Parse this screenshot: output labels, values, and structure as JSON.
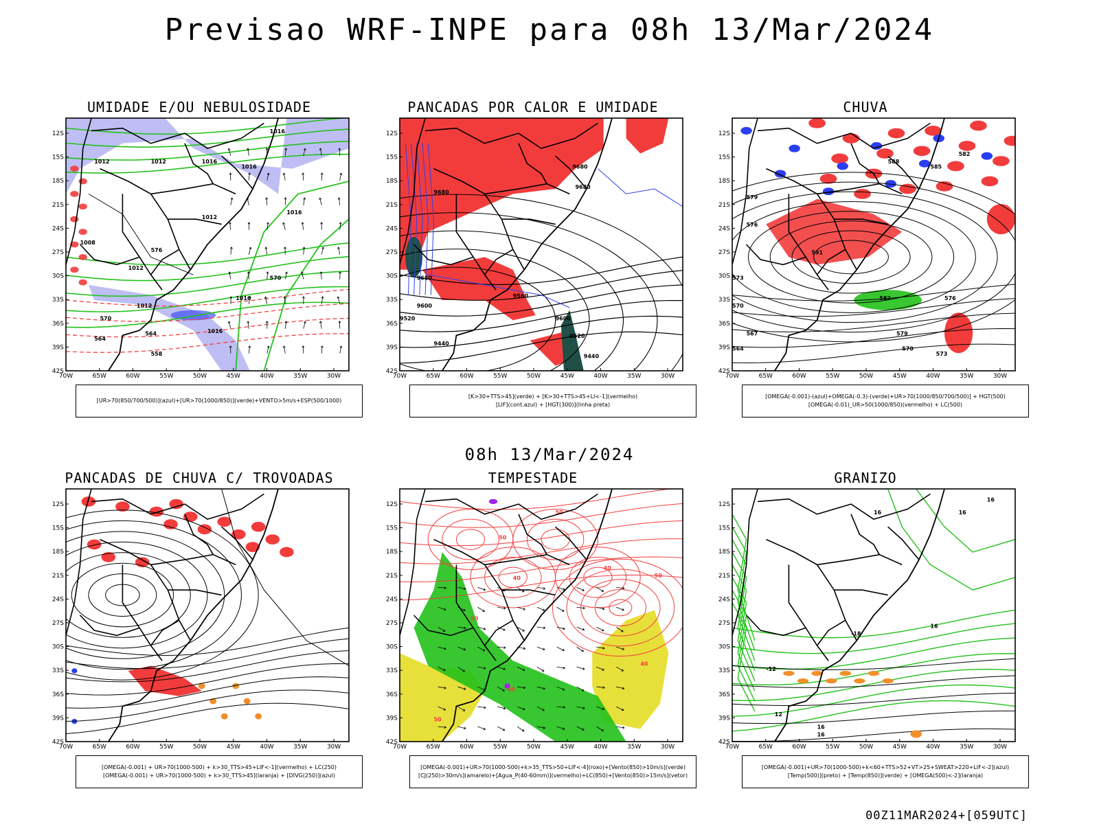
{
  "header": {
    "title": "Previsao WRF-INPE  para 08h 13/Mar/2024",
    "subtitle_date": "08h 13/Mar/2024",
    "footer": "00Z11MAR2024+[059UTC]"
  },
  "axes": {
    "lat_labels": [
      "12S",
      "15S",
      "18S",
      "21S",
      "24S",
      "27S",
      "30S",
      "33S",
      "36S",
      "39S",
      "42S"
    ],
    "lon_labels": [
      "70W",
      "65W",
      "60W",
      "55W",
      "50W",
      "45W",
      "40W",
      "35W",
      "30W"
    ]
  },
  "colors": {
    "red": "#f23c3c",
    "green": "#22c11a",
    "blue": "#2b3ff2",
    "lavender": "#b3b3f2",
    "yellow": "#e8e03a",
    "dark_teal": "#1f4f46",
    "orange": "#f0902a",
    "purple": "#a020f0"
  },
  "panels": [
    {
      "id": "umidade",
      "title": "UMIDADE E/OU NEBULOSIDADE",
      "legend": [
        "[UR>70(850/700/500)](azul)+[UR>70(1000/850)](verde)+VENTO>5m/s+ESP(500/1000)"
      ],
      "contour_labels": [
        "1016",
        "1012",
        "1012",
        "1016",
        "1016",
        "1016",
        "1012",
        "1008",
        "1012",
        "1016",
        "1016",
        "1012",
        "576",
        "570",
        "564",
        "558",
        "570",
        "564"
      ]
    },
    {
      "id": "pancadas-calor",
      "title": "PANCADAS POR CALOR E UMIDADE",
      "legend": [
        "[K>30+TTS>45](verde) + [K>30+TTS>45+LI<-1](vermelho)",
        "[LIF](cont.azul) + [HGT(300)](linha preta)"
      ],
      "contour_labels": [
        "9680",
        "9680",
        "9680",
        "9680",
        "9520",
        "9600",
        "9440",
        "9600",
        "9520",
        "9440",
        "9560"
      ]
    },
    {
      "id": "chuva",
      "title": "CHUVA",
      "legend": [
        "[OMEGA(-0.001)-(azul)+OMEGA(-0.3)-(verde)+UR>70(1000/850/700/500)] + HGT(500)",
        "[OMEGA(-0.01)_UR>50(1000/850)(vermelho) + LC(500)"
      ],
      "contour_labels": [
        "588",
        "585",
        "582",
        "579",
        "576",
        "573",
        "570",
        "567",
        "564",
        "591",
        "582",
        "579",
        "576",
        "573",
        "570"
      ]
    },
    {
      "id": "pancadas-trovoadas",
      "title": "PANCADAS DE CHUVA C/ TROVOADAS",
      "legend": [
        "[OMEGA(-0.001) + UR>70(1000-500) + k>30_TTS>45+LIF<-1](vermelho) + LC(250)",
        "[OMEGA(-0.001) + UR>70(1000-500) + k>30_TTS>45](laranja) + [DIVG(250)](azul)"
      ],
      "contour_labels": []
    },
    {
      "id": "tempestade",
      "title": "TEMPESTADE",
      "legend": [
        "[OMEGA(-0.001)+UR>70(1000-500)+k>35_TTS>50+LIF<-4](roxo)+[Vento(850)>10m/s](verde)",
        "[CJ(250)>30m/s](amarelo)+[Agua_P(40-60mm)](vermelho)+LC(850)+[Vento(850)>15m/s](vetor)"
      ],
      "contour_labels": [
        "50",
        "50",
        "40",
        "50",
        "40",
        "50",
        "40",
        "50",
        "40"
      ]
    },
    {
      "id": "granizo",
      "title": "GRANIZO",
      "legend": [
        "[OMEGA(-0.001)+UR>70(1000-500)+k<60+TTS>52+VT>25+SWEAT>220+LIF<-2](azul)",
        "[Temp(500)](preto) + [Temp(850)](verde) + [OMEGA(500)<-2](laranja)"
      ],
      "contour_labels": [
        "16",
        "16",
        "16",
        "16",
        "16",
        "12",
        "16",
        "-12",
        "-18"
      ]
    }
  ]
}
